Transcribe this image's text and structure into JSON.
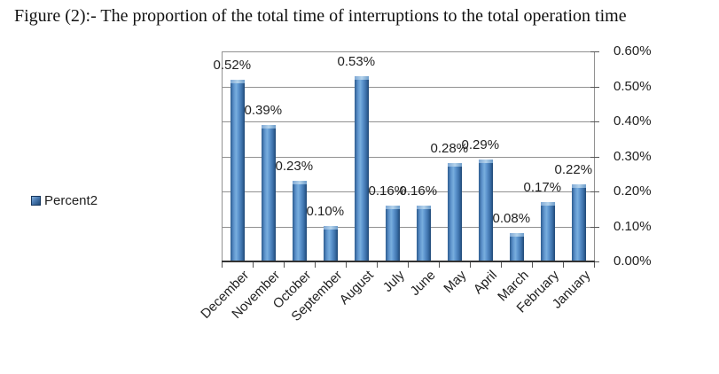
{
  "figure_title": "Figure (2):-  The proportion of the total time of interruptions to the total operation time",
  "legend": {
    "label": "Percent2"
  },
  "chart_data": {
    "type": "bar",
    "title": "Figure (2):- The proportion of the total time of interruptions to the total operation time",
    "categories": [
      "December",
      "November",
      "October",
      "September",
      "August",
      "July",
      "June",
      "May",
      "April",
      "March",
      "February",
      "January"
    ],
    "series": [
      {
        "name": "Percent2",
        "values": [
          0.52,
          0.39,
          0.23,
          0.1,
          0.53,
          0.16,
          0.16,
          0.28,
          0.29,
          0.08,
          0.17,
          0.22
        ]
      }
    ],
    "data_labels": [
      "0.52%",
      "0.39%",
      "0.23%",
      "0.10%",
      "0.53%",
      "0.16%",
      "0.16%",
      "0.28%",
      "0.29%",
      "0.08%",
      "0.17%",
      "0.22%"
    ],
    "unit": "%",
    "xlabel": "",
    "ylabel": "",
    "ylim": [
      0,
      0.6
    ],
    "y_ticks": [
      "0.60%",
      "0.50%",
      "0.40%",
      "0.30%",
      "0.20%",
      "0.10%",
      "0.00%"
    ],
    "grid": true,
    "legend_position": "left",
    "colors": {
      "bar_gradient": [
        "#2d5c8f",
        "#5c92cb",
        "#79aede",
        "#5f97d0",
        "#3c70a9",
        "#1e4876"
      ],
      "bar_cap_gradient": [
        "#7fa8d4",
        "#b4d3ec",
        "#6d9cc9"
      ],
      "grid_line": "#919191",
      "axis_line": "#333333",
      "tick": "#555555",
      "text": "#1f1f1f"
    }
  }
}
